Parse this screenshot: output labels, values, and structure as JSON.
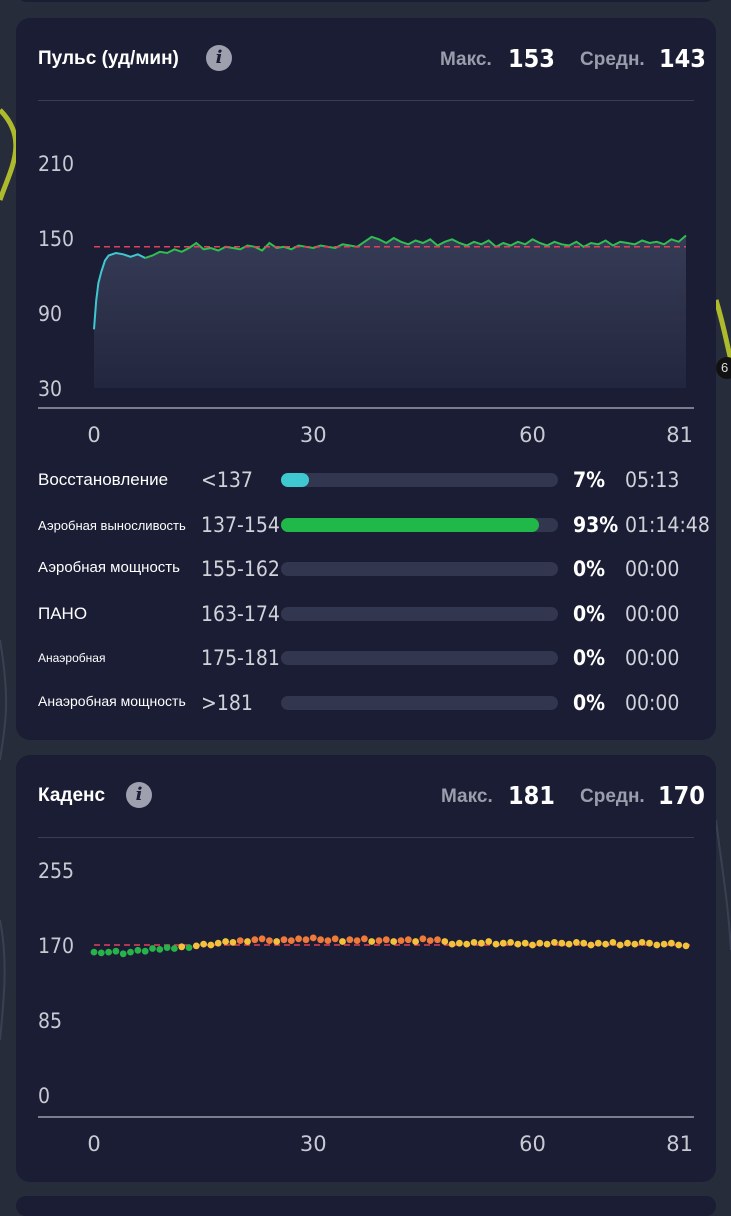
{
  "heart_rate": {
    "title": "Пульс (уд/мин)",
    "info_icon": "info-icon",
    "max_label": "Макс.",
    "max_value": "153",
    "avg_label": "Средн.",
    "avg_value": "143",
    "zones": [
      {
        "name": "Восстановление",
        "range": "<137",
        "percent_label": "7%",
        "percent": 7,
        "time": "05:13",
        "color": "#3ec9d0"
      },
      {
        "name": "Аэробная выносливость",
        "range": "137-154",
        "percent_label": "93%",
        "percent": 93,
        "time": "01:14:48",
        "color": "#21b84a"
      },
      {
        "name": "Аэробная мощность",
        "range": "155-162",
        "percent_label": "0%",
        "percent": 0,
        "time": "00:00",
        "color": "#e0b43a"
      },
      {
        "name": "ПАНО",
        "range": "163-174",
        "percent_label": "0%",
        "percent": 0,
        "time": "00:00",
        "color": "#e67a2a"
      },
      {
        "name": "Анаэробная",
        "range": "175-181",
        "percent_label": "0%",
        "percent": 0,
        "time": "00:00",
        "color": "#e04a3a"
      },
      {
        "name": "Анаэробная мощность",
        "range": ">181",
        "percent_label": "0%",
        "percent": 0,
        "time": "00:00",
        "color": "#c0304a"
      }
    ]
  },
  "cadence": {
    "title": "Каденс",
    "info_icon": "info-icon",
    "max_label": "Макс.",
    "max_value": "181",
    "avg_label": "Средн.",
    "avg_value": "170"
  },
  "side_badge": "6",
  "colors": {
    "background": "#272c3a",
    "card": "#1a1d33",
    "hr_low": "#3ec9d0",
    "hr_line": "#2fbf4f",
    "avg_line": "#e0415a",
    "cad_green": "#27b24a",
    "cad_yellow": "#f3c23a",
    "cad_orange": "#f07a3a"
  },
  "chart_data": [
    {
      "type": "line",
      "ylim": [
        30,
        210
      ],
      "xlim": [
        0,
        81
      ],
      "y_ticks": [
        "210",
        "150",
        "90",
        "30"
      ],
      "y_tick_values": [
        210,
        150,
        90,
        30
      ],
      "x_ticks": [
        "0",
        "30",
        "60",
        "81"
      ],
      "x_tick_values": [
        0,
        30,
        60,
        81
      ],
      "avg_line": 143,
      "grid": false,
      "series": [
        {
          "x": [
            0,
            0.3,
            0.6,
            1,
            1.5,
            2,
            3,
            4,
            5,
            6,
            7,
            8,
            9,
            10,
            11,
            12,
            13,
            14,
            15,
            16,
            17,
            18,
            19,
            20,
            21,
            22,
            23,
            24,
            25,
            26,
            27,
            28,
            29,
            30,
            31,
            32,
            33,
            34,
            35,
            36,
            37,
            38,
            39,
            40,
            41,
            42,
            43,
            44,
            45,
            46,
            47,
            48,
            49,
            50,
            51,
            52,
            53,
            54,
            55,
            56,
            57,
            58,
            59,
            60,
            61,
            62,
            63,
            64,
            65,
            66,
            67,
            68,
            69,
            70,
            71,
            72,
            73,
            74,
            75,
            76,
            77,
            78,
            79,
            80,
            81
          ],
          "y": [
            77,
            100,
            114,
            123,
            132,
            136,
            138,
            137,
            135,
            137,
            134,
            136,
            139,
            138,
            141,
            139,
            142,
            146,
            141,
            142,
            140,
            143,
            142,
            141,
            144,
            143,
            140,
            146,
            142,
            143,
            141,
            144,
            143,
            142,
            144,
            143,
            142,
            145,
            144,
            143,
            147,
            151,
            149,
            146,
            150,
            147,
            145,
            148,
            146,
            149,
            144,
            147,
            149,
            146,
            144,
            147,
            145,
            148,
            143,
            146,
            144,
            147,
            145,
            149,
            146,
            144,
            147,
            145,
            144,
            147,
            143,
            146,
            145,
            148,
            144,
            147,
            146,
            145,
            148,
            146,
            147,
            145,
            149,
            147,
            152
          ]
        }
      ]
    },
    {
      "type": "scatter",
      "ylim": [
        0,
        255
      ],
      "xlim": [
        0,
        81
      ],
      "y_ticks": [
        "255",
        "170",
        "85",
        "0"
      ],
      "y_tick_values": [
        255,
        170,
        85,
        0
      ],
      "x_ticks": [
        "0",
        "30",
        "60",
        "81"
      ],
      "x_tick_values": [
        0,
        30,
        60,
        81
      ],
      "avg_line": 170,
      "grid": false,
      "series": [
        {
          "x": [
            0,
            1,
            2,
            3,
            4,
            5,
            6,
            7,
            8,
            9,
            10,
            11,
            12,
            13,
            14,
            15,
            16,
            17,
            18,
            19,
            20,
            21,
            22,
            23,
            24,
            25,
            26,
            27,
            28,
            29,
            30,
            31,
            32,
            33,
            34,
            35,
            36,
            37,
            38,
            39,
            40,
            41,
            42,
            43,
            44,
            45,
            46,
            47,
            48,
            49,
            50,
            51,
            52,
            53,
            54,
            55,
            56,
            57,
            58,
            59,
            60,
            61,
            62,
            63,
            64,
            65,
            66,
            67,
            68,
            69,
            70,
            71,
            72,
            73,
            74,
            75,
            76,
            77,
            78,
            79,
            80,
            81
          ],
          "y": [
            162,
            161,
            162,
            163,
            160,
            162,
            164,
            163,
            166,
            165,
            167,
            166,
            168,
            167,
            169,
            171,
            170,
            172,
            174,
            173,
            175,
            174,
            176,
            177,
            175,
            174,
            176,
            175,
            177,
            176,
            178,
            176,
            175,
            177,
            174,
            176,
            175,
            177,
            174,
            175,
            176,
            174,
            175,
            176,
            174,
            177,
            175,
            176,
            174,
            171,
            172,
            171,
            173,
            172,
            174,
            171,
            172,
            173,
            171,
            172,
            170,
            172,
            171,
            173,
            172,
            171,
            173,
            172,
            170,
            172,
            171,
            173,
            170,
            172,
            171,
            173,
            172,
            170,
            171,
            172,
            170,
            169
          ]
        }
      ]
    }
  ]
}
